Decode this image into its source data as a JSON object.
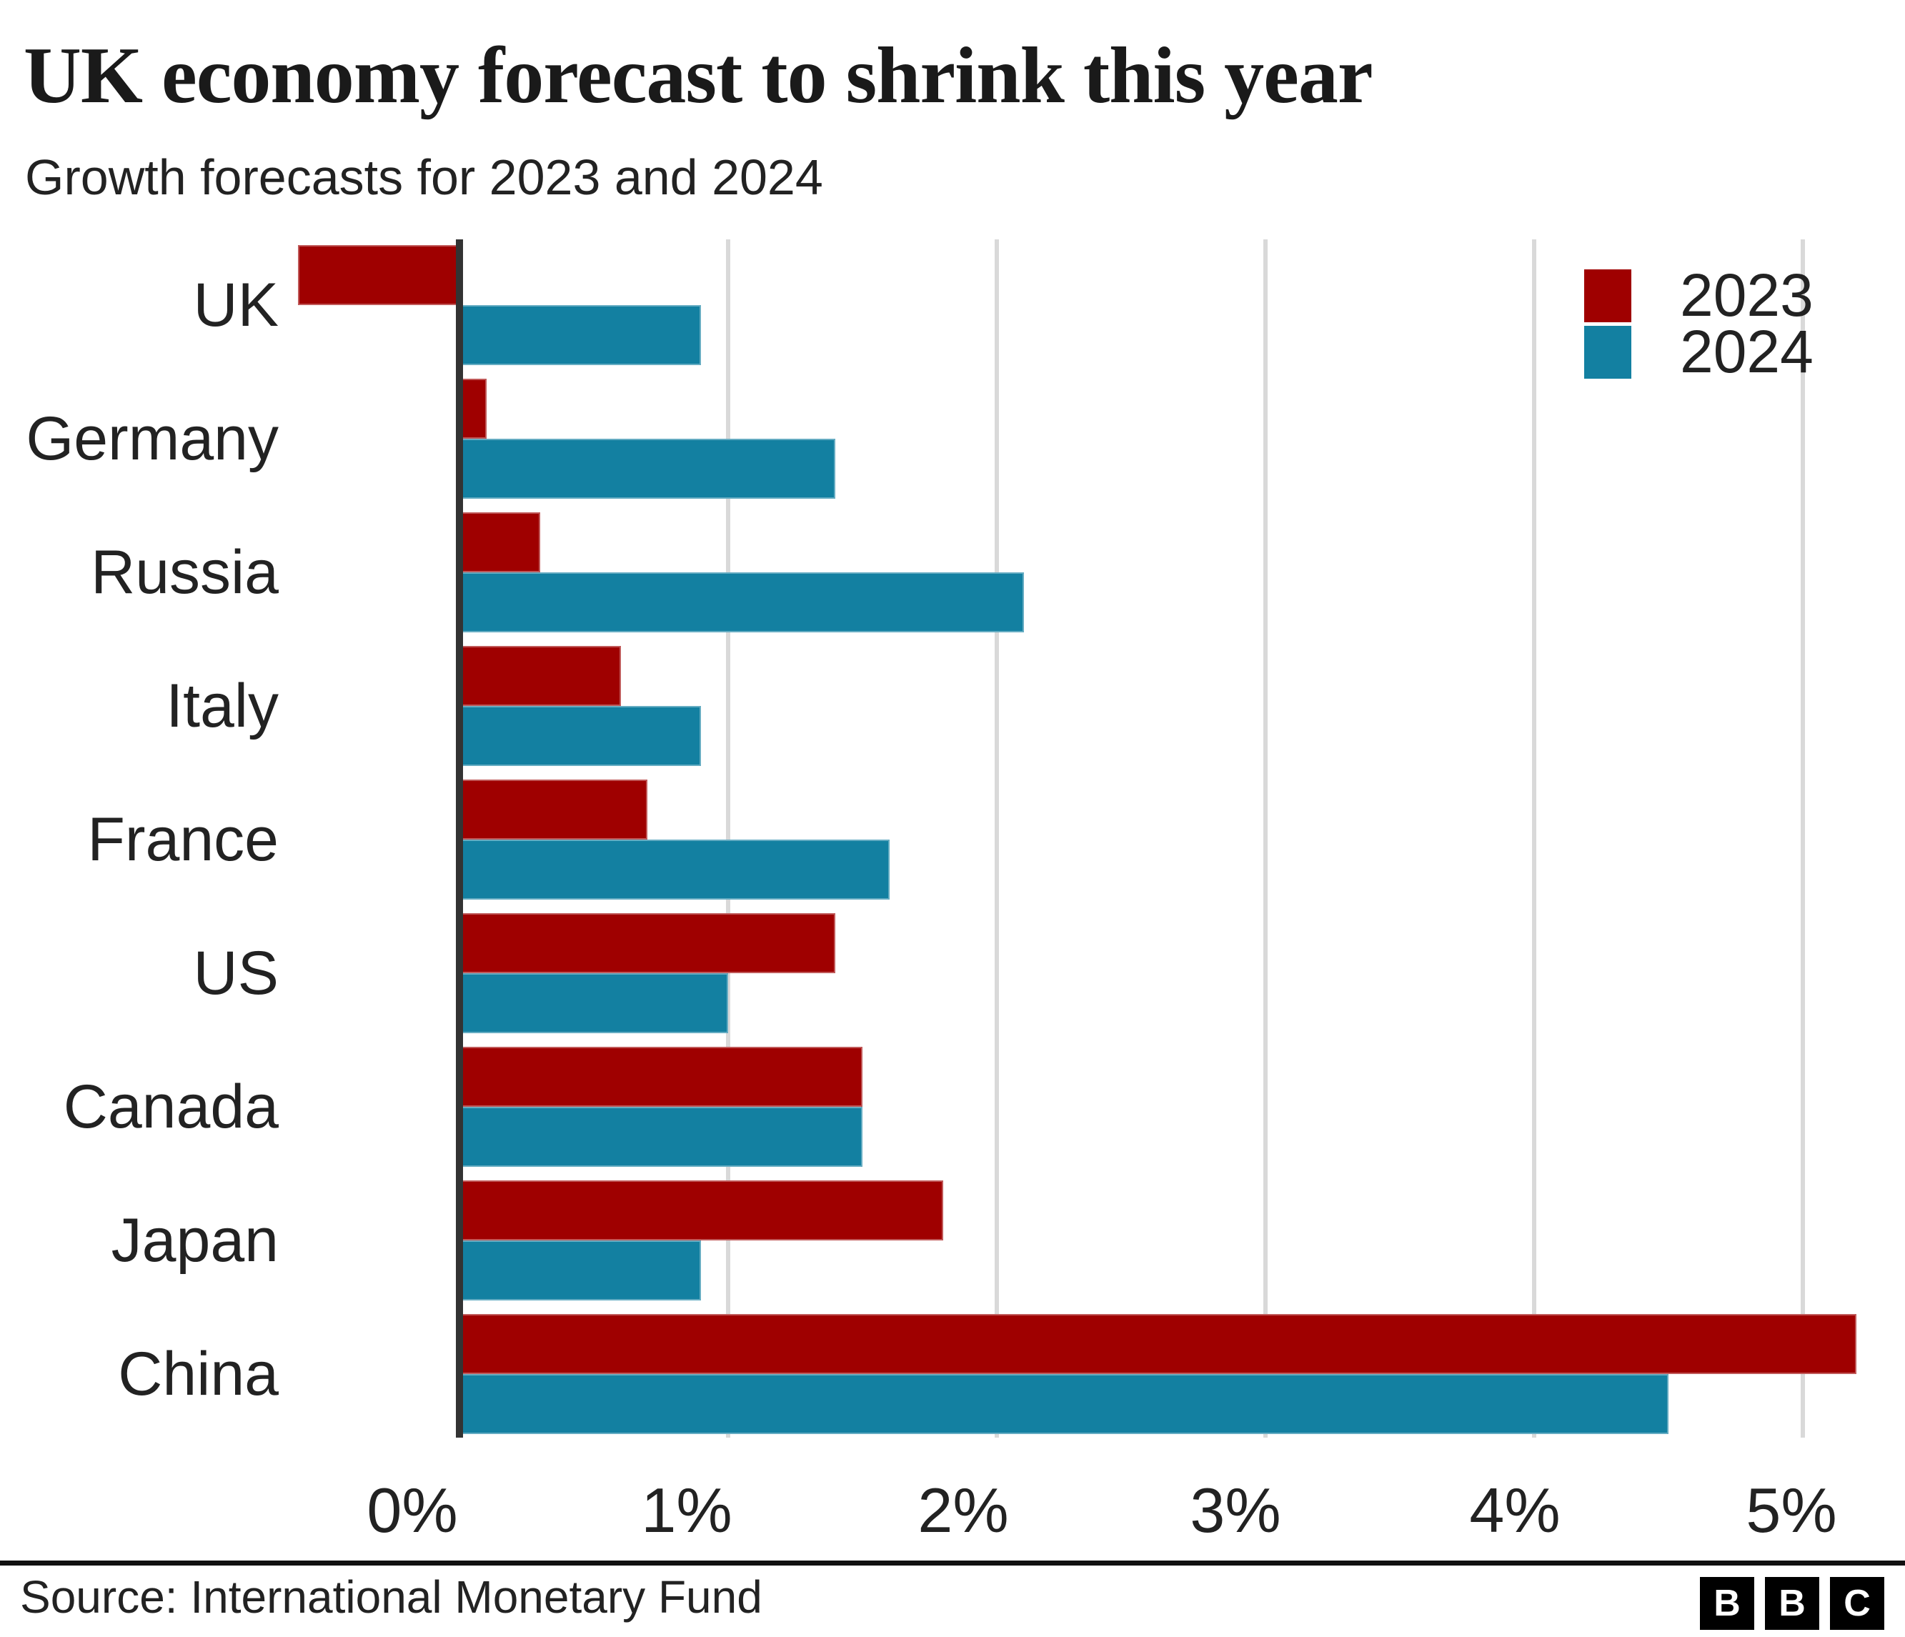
{
  "header": {
    "title": "UK economy forecast to shrink this year",
    "subtitle": "Growth forecasts for 2023 and 2024"
  },
  "legend": [
    {
      "label": "2023",
      "color": "#9f0000"
    },
    {
      "label": "2024",
      "color": "#1380a1"
    }
  ],
  "chart_data": {
    "type": "bar",
    "orientation": "horizontal",
    "title": "UK economy forecast to shrink this year",
    "subtitle": "Growth forecasts for 2023 and 2024",
    "categories": [
      "UK",
      "Germany",
      "Russia",
      "Italy",
      "France",
      "US",
      "Canada",
      "Japan",
      "China"
    ],
    "series": [
      {
        "name": "2023",
        "color": "#9f0000",
        "values": [
          -0.6,
          0.1,
          0.3,
          0.6,
          0.7,
          1.4,
          1.5,
          1.8,
          5.2
        ]
      },
      {
        "name": "2024",
        "color": "#1380a1",
        "values": [
          0.9,
          1.4,
          2.1,
          0.9,
          1.6,
          1.0,
          1.5,
          0.9,
          4.5
        ]
      }
    ],
    "x_ticks": [
      "0%",
      "1%",
      "2%",
      "3%",
      "4%",
      "5%"
    ],
    "x_tick_values": [
      0,
      1,
      2,
      3,
      4,
      5
    ],
    "xlim": [
      -0.65,
      5.4
    ],
    "unit": "%",
    "grid": "vertical",
    "legend_position": "top-right",
    "colors": {
      "axis": "#333333",
      "gridline": "#d9d9d9",
      "text": "#222222"
    }
  },
  "footer": {
    "source": "Source: International Monetary Fund",
    "logo_letters": [
      "B",
      "B",
      "C"
    ]
  }
}
